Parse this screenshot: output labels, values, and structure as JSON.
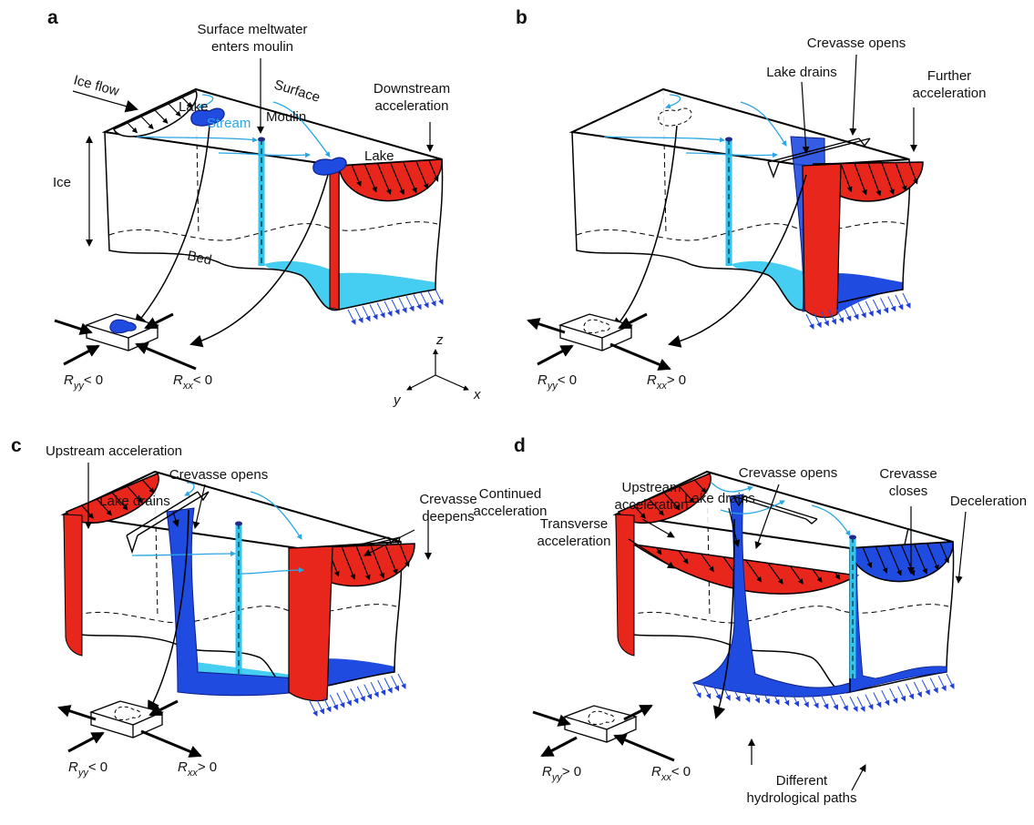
{
  "panel_a": {
    "letter": "a",
    "ice_flow": "Ice flow",
    "meltwater": [
      "Surface meltwater",
      "enters moulin"
    ],
    "lake_left": "Lake",
    "surface": "Surface",
    "stream": "Stream",
    "moulin": "Moulin",
    "lake_right": "Lake",
    "downstream": [
      "Downstream",
      "acceleration"
    ],
    "ice": "Ice",
    "bed": "Bed",
    "r_yy": {
      "symbol": "R",
      "subscript": "yy",
      "relation": "< 0"
    },
    "r_xx": {
      "symbol": "R",
      "subscript": "xx",
      "relation": "< 0"
    }
  },
  "panel_b": {
    "letter": "b",
    "crevasse_opens": "Crevasse opens",
    "lake_drains": "Lake drains",
    "further": [
      "Further",
      "acceleration"
    ],
    "r_yy": {
      "symbol": "R",
      "subscript": "yy",
      "relation": "< 0"
    },
    "r_xx": {
      "symbol": "R",
      "subscript": "xx",
      "relation": "> 0"
    }
  },
  "panel_c": {
    "letter": "c",
    "upstream": "Upstream acceleration",
    "crevasse_opens": "Crevasse opens",
    "lake_drains": "Lake drains",
    "crevasse_deepens": [
      "Crevasse",
      "deepens"
    ],
    "continued": [
      "Continued",
      "acceleration"
    ],
    "r_yy": {
      "symbol": "R",
      "subscript": "yy",
      "relation": "< 0"
    },
    "r_xx": {
      "symbol": "R",
      "subscript": "xx",
      "relation": "> 0"
    }
  },
  "panel_d": {
    "letter": "d",
    "upstream": [
      "Upstream",
      "acceleration"
    ],
    "lake_drains": "Lake drains",
    "crevasse_opens": "Crevasse opens",
    "crevasse_closes": [
      "Crevasse",
      "closes"
    ],
    "deceleration": "Deceleration",
    "transverse": [
      "Transverse",
      "acceleration"
    ],
    "paths": [
      "Different",
      "hydrological paths"
    ],
    "r_yy": {
      "symbol": "R",
      "subscript": "yy",
      "relation": "> 0"
    },
    "r_xx": {
      "symbol": "R",
      "subscript": "xx",
      "relation": "< 0"
    }
  },
  "axes": {
    "z": "z",
    "y": "y",
    "x": "x"
  }
}
